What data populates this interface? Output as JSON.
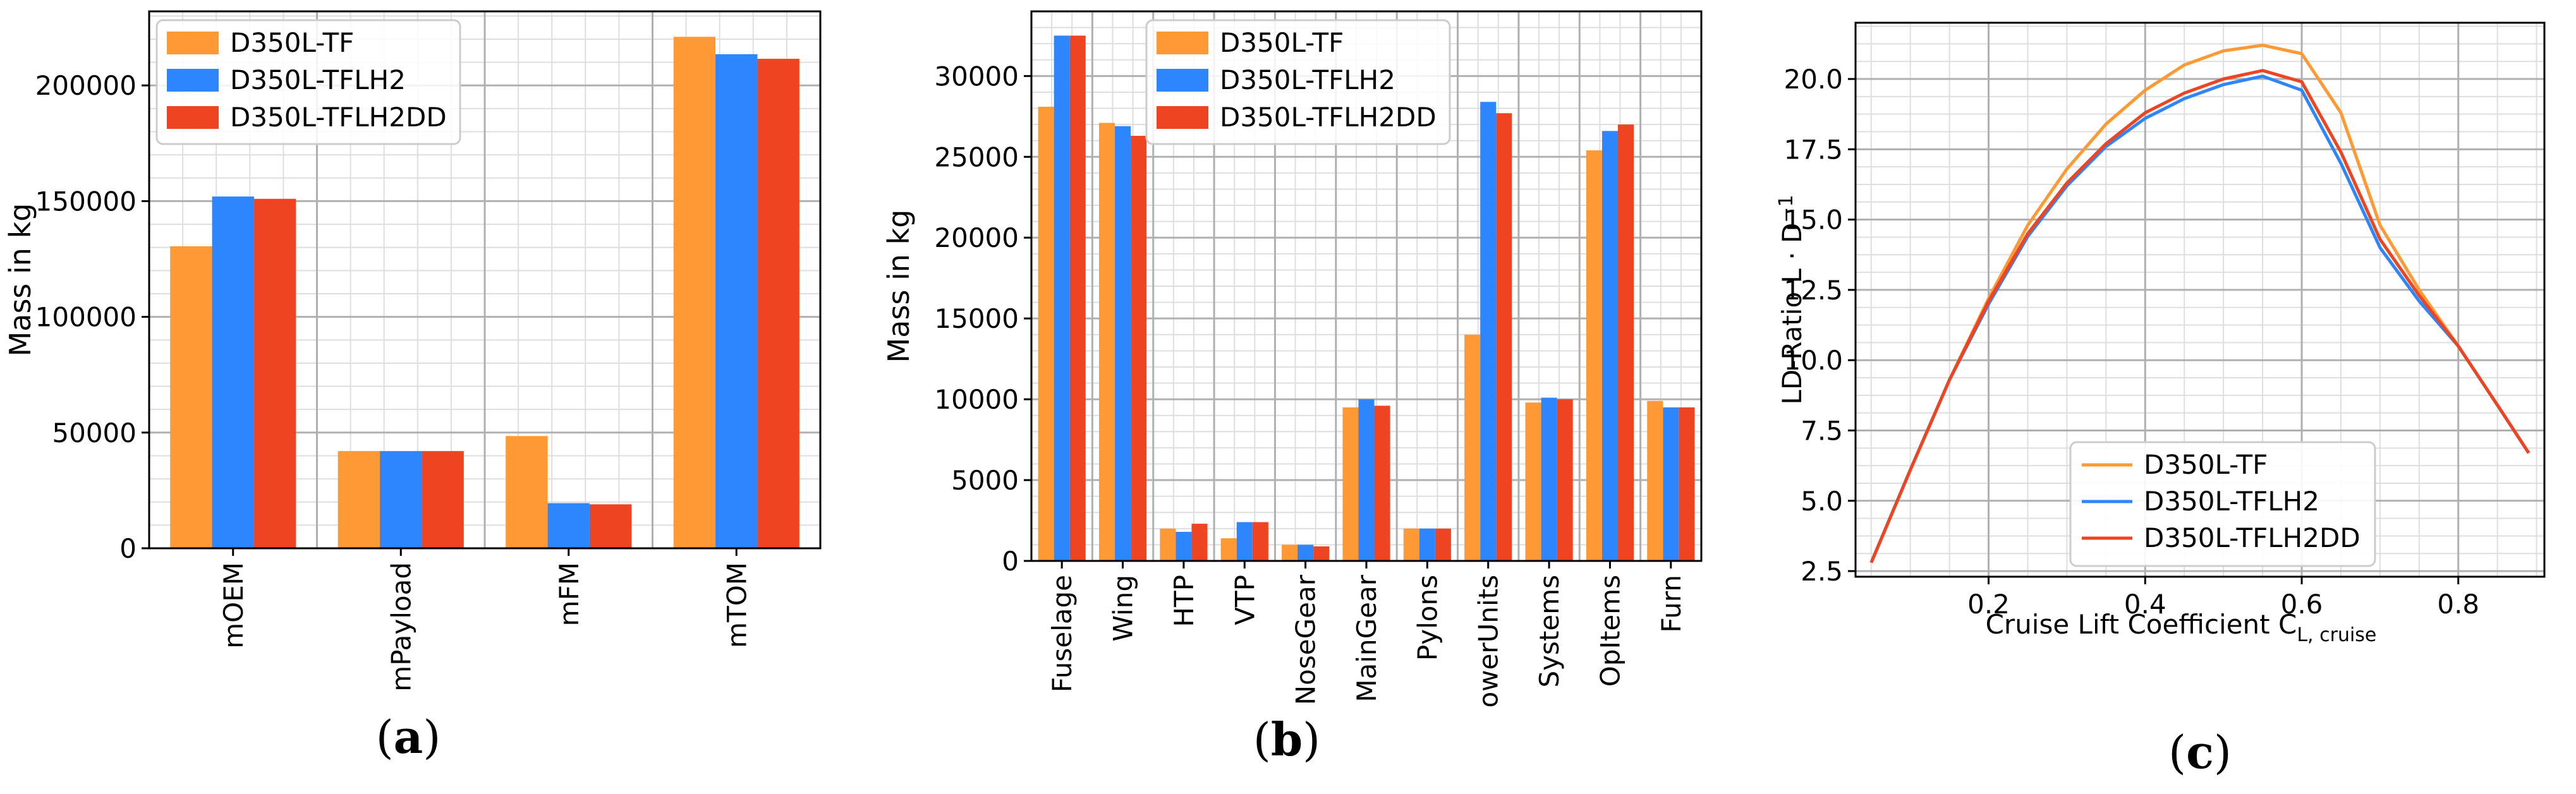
{
  "colors": {
    "tf": "#ff9933",
    "tflh2": "#2e86ff",
    "tflh2dd": "#ee4422",
    "grid_major": "#b0b0b0",
    "grid_minor": "#dedede"
  },
  "captions": {
    "a": "a",
    "b": "b",
    "c": "c"
  },
  "chart_data": [
    {
      "id": "a",
      "type": "bar",
      "categories": [
        "mOEM",
        "mPayload",
        "mFM",
        "mTOM"
      ],
      "series": [
        {
          "name": "D350L-TF",
          "values": [
            130500,
            42000,
            48500,
            221000
          ]
        },
        {
          "name": "D350L-TFLH2",
          "values": [
            152000,
            42000,
            19500,
            213500
          ]
        },
        {
          "name": "D350L-TFLH2DD",
          "values": [
            151000,
            42000,
            19000,
            211500
          ]
        }
      ],
      "ylabel": "Mass in kg",
      "ylim": [
        0,
        232000
      ],
      "yticks": [
        0,
        50000,
        100000,
        150000,
        200000
      ],
      "grid": true,
      "legend": "top-left"
    },
    {
      "id": "b",
      "type": "bar",
      "categories": [
        "Fuselage",
        "Wing",
        "HTP",
        "VTP",
        "NoseGear",
        "MainGear",
        "Pylons",
        "owerUnits",
        "Systems",
        "OpItems",
        "Furn"
      ],
      "series": [
        {
          "name": "D350L-TF",
          "values": [
            28100,
            27100,
            2000,
            1400,
            1000,
            9500,
            2000,
            14000,
            9800,
            25400,
            9900
          ]
        },
        {
          "name": "D350L-TFLH2",
          "values": [
            32500,
            26900,
            1800,
            2400,
            1000,
            10000,
            2000,
            28400,
            10100,
            26600,
            9500
          ]
        },
        {
          "name": "D350L-TFLH2DD",
          "values": [
            32500,
            26300,
            2300,
            2400,
            900,
            9600,
            2000,
            27700,
            10000,
            27000,
            9500
          ]
        }
      ],
      "ylabel": "Mass in kg",
      "ylim": [
        0,
        34000
      ],
      "yticks": [
        0,
        5000,
        10000,
        15000,
        20000,
        25000,
        30000
      ],
      "grid": true,
      "legend": "top-center"
    },
    {
      "id": "c",
      "type": "line",
      "x": [
        0.05,
        0.1,
        0.15,
        0.2,
        0.25,
        0.3,
        0.35,
        0.4,
        0.45,
        0.5,
        0.55,
        0.6,
        0.65,
        0.7,
        0.75,
        0.8,
        0.85,
        0.89
      ],
      "series": [
        {
          "name": "D350L-TF",
          "values": [
            2.8,
            6.1,
            9.3,
            12.2,
            14.8,
            16.8,
            18.4,
            19.6,
            20.5,
            21.0,
            21.2,
            20.9,
            18.8,
            14.8,
            12.5,
            10.5,
            8.4,
            6.7
          ]
        },
        {
          "name": "D350L-TFLH2",
          "values": [
            2.8,
            6.1,
            9.3,
            12.0,
            14.4,
            16.2,
            17.6,
            18.6,
            19.3,
            19.8,
            20.1,
            19.6,
            17.0,
            14.0,
            12.1,
            10.5,
            8.4,
            6.7
          ]
        },
        {
          "name": "D350L-TFLH2DD",
          "values": [
            2.8,
            6.1,
            9.3,
            12.1,
            14.5,
            16.3,
            17.7,
            18.8,
            19.5,
            20.0,
            20.3,
            19.9,
            17.4,
            14.3,
            12.3,
            10.5,
            8.4,
            6.7
          ]
        }
      ],
      "xlabel": "Cruise Lift Coefficient C",
      "xlabel_sub": "L, cruise",
      "ylabel": "LD-Ratio L · D",
      "ylabel_sup": "−1",
      "xlim": [
        0.03,
        0.91
      ],
      "ylim": [
        2.3,
        22.0
      ],
      "xticks": [
        0.2,
        0.4,
        0.6,
        0.8
      ],
      "yticks": [
        2.5,
        5.0,
        7.5,
        10.0,
        12.5,
        15.0,
        17.5,
        20.0
      ],
      "grid": true,
      "legend": "lower-center"
    }
  ]
}
